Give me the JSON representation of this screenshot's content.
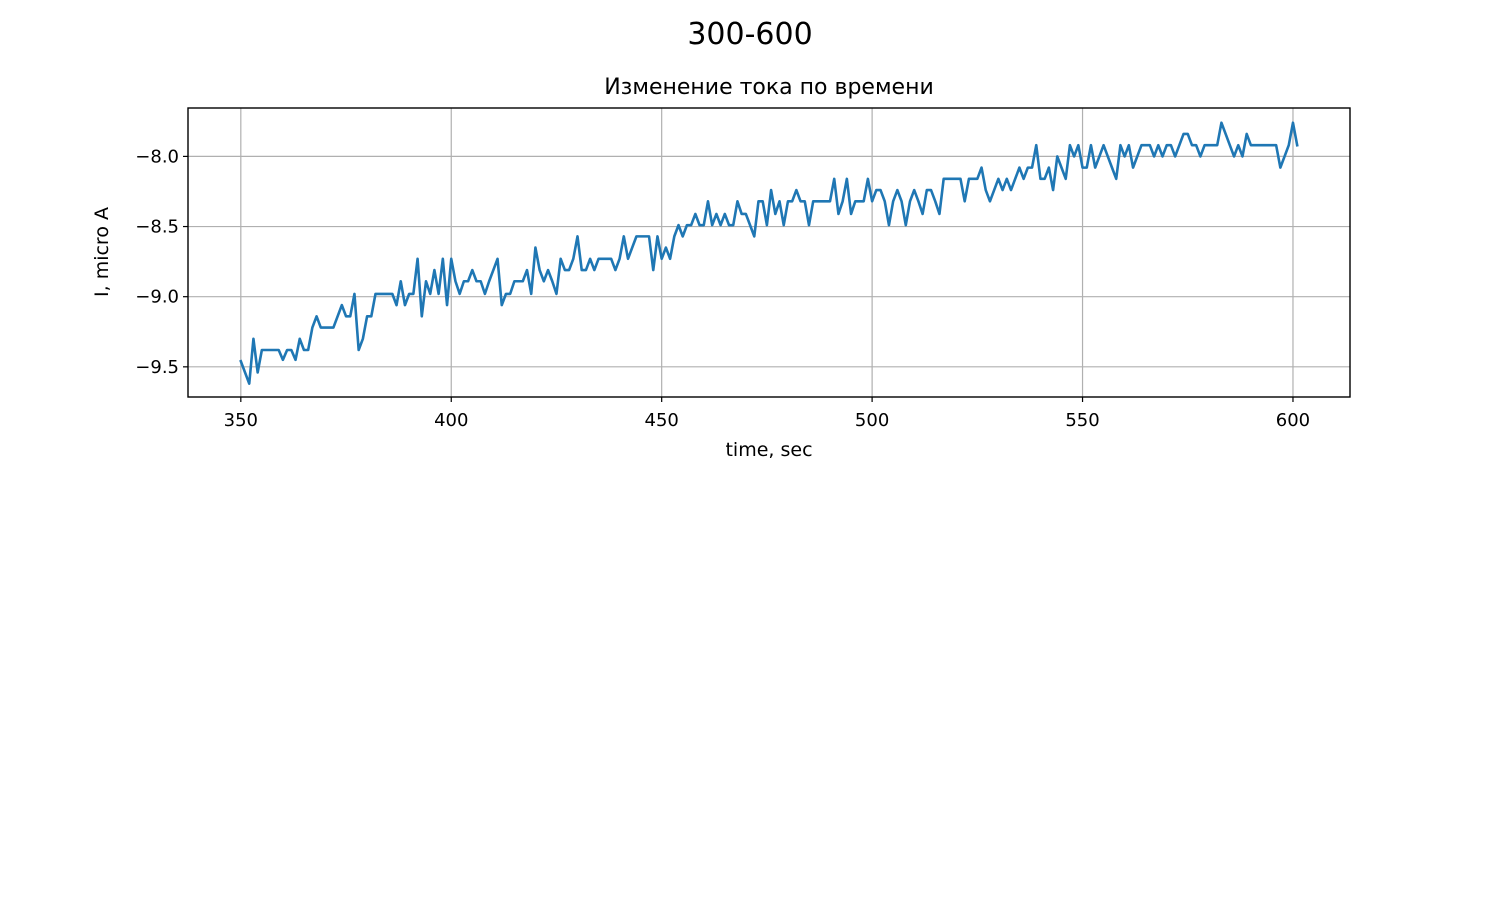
{
  "chart_data": {
    "type": "line",
    "title": "300-600",
    "subtitle": "Изменение тока по времени",
    "x_label": "time, sec",
    "y_label": "I, micro A",
    "color": "#1f77b4",
    "grid": true,
    "xlim": [
      337.45,
      613.55
    ],
    "ylim": [
      -9.715,
      -7.655
    ],
    "xticks": [
      350,
      400,
      450,
      500,
      550,
      600
    ],
    "yticks": [
      {
        "value": -9.5,
        "label": "−9.5"
      },
      {
        "value": -9.0,
        "label": "−9.0"
      },
      {
        "value": -8.5,
        "label": "−8.5"
      },
      {
        "value": -8.0,
        "label": "−8.0"
      }
    ],
    "x": [
      350,
      351,
      352,
      353,
      354,
      355,
      356,
      357,
      358,
      359,
      360,
      361,
      362,
      363,
      364,
      365,
      366,
      367,
      368,
      369,
      370,
      371,
      372,
      373,
      374,
      375,
      376,
      377,
      378,
      379,
      380,
      381,
      382,
      383,
      384,
      385,
      386,
      387,
      388,
      389,
      390,
      391,
      392,
      393,
      394,
      395,
      396,
      397,
      398,
      399,
      400,
      401,
      402,
      403,
      404,
      405,
      406,
      407,
      408,
      409,
      410,
      411,
      412,
      413,
      414,
      415,
      416,
      417,
      418,
      419,
      420,
      421,
      422,
      423,
      424,
      425,
      426,
      427,
      428,
      429,
      430,
      431,
      432,
      433,
      434,
      435,
      436,
      437,
      438,
      439,
      440,
      441,
      442,
      443,
      444,
      445,
      446,
      447,
      448,
      449,
      450,
      451,
      452,
      453,
      454,
      455,
      456,
      457,
      458,
      459,
      460,
      461,
      462,
      463,
      464,
      465,
      466,
      467,
      468,
      469,
      470,
      471,
      472,
      473,
      474,
      475,
      476,
      477,
      478,
      479,
      480,
      481,
      482,
      483,
      484,
      485,
      486,
      487,
      488,
      489,
      490,
      491,
      492,
      493,
      494,
      495,
      496,
      497,
      498,
      499,
      500,
      501,
      502,
      503,
      504,
      505,
      506,
      507,
      508,
      509,
      510,
      511,
      512,
      513,
      514,
      515,
      516,
      517,
      518,
      519,
      520,
      521,
      522,
      523,
      524,
      525,
      526,
      527,
      528,
      529,
      530,
      531,
      532,
      533,
      534,
      535,
      536,
      537,
      538,
      539,
      540,
      541,
      542,
      543,
      544,
      545,
      546,
      547,
      548,
      549,
      550,
      551,
      552,
      553,
      554,
      555,
      556,
      557,
      558,
      559,
      560,
      561,
      562,
      563,
      564,
      565,
      566,
      567,
      568,
      569,
      570,
      571,
      572,
      573,
      574,
      575,
      576,
      577,
      578,
      579,
      580,
      581,
      582,
      583,
      584,
      585,
      586,
      587,
      588,
      589,
      590,
      591,
      592,
      593,
      594,
      595,
      596,
      597,
      598,
      599,
      600,
      601
    ],
    "values": [
      -9.46,
      -9.54,
      -9.62,
      -9.3,
      -9.54,
      -9.38,
      -9.38,
      -9.38,
      -9.38,
      -9.38,
      -9.45,
      -9.38,
      -9.38,
      -9.45,
      -9.3,
      -9.38,
      -9.38,
      -9.22,
      -9.14,
      -9.22,
      -9.22,
      -9.22,
      -9.22,
      -9.14,
      -9.06,
      -9.14,
      -9.14,
      -8.98,
      -9.38,
      -9.3,
      -9.14,
      -9.14,
      -8.98,
      -8.98,
      -8.98,
      -8.98,
      -8.98,
      -9.06,
      -8.89,
      -9.06,
      -8.98,
      -8.98,
      -8.73,
      -9.14,
      -8.89,
      -8.98,
      -8.81,
      -8.98,
      -8.73,
      -9.06,
      -8.73,
      -8.89,
      -8.98,
      -8.89,
      -8.89,
      -8.81,
      -8.89,
      -8.89,
      -8.98,
      -8.89,
      -8.81,
      -8.73,
      -9.06,
      -8.98,
      -8.98,
      -8.89,
      -8.89,
      -8.89,
      -8.81,
      -8.98,
      -8.65,
      -8.81,
      -8.89,
      -8.81,
      -8.89,
      -8.98,
      -8.73,
      -8.81,
      -8.81,
      -8.73,
      -8.57,
      -8.81,
      -8.81,
      -8.73,
      -8.81,
      -8.73,
      -8.73,
      -8.73,
      -8.73,
      -8.81,
      -8.73,
      -8.57,
      -8.73,
      -8.65,
      -8.57,
      -8.57,
      -8.57,
      -8.57,
      -8.81,
      -8.57,
      -8.73,
      -8.65,
      -8.73,
      -8.57,
      -8.49,
      -8.57,
      -8.49,
      -8.49,
      -8.41,
      -8.49,
      -8.49,
      -8.32,
      -8.49,
      -8.41,
      -8.49,
      -8.41,
      -8.49,
      -8.49,
      -8.32,
      -8.41,
      -8.41,
      -8.49,
      -8.57,
      -8.32,
      -8.32,
      -8.49,
      -8.24,
      -8.41,
      -8.32,
      -8.49,
      -8.32,
      -8.32,
      -8.24,
      -8.32,
      -8.32,
      -8.49,
      -8.32,
      -8.32,
      -8.32,
      -8.32,
      -8.32,
      -8.16,
      -8.41,
      -8.32,
      -8.16,
      -8.41,
      -8.32,
      -8.32,
      -8.32,
      -8.16,
      -8.32,
      -8.24,
      -8.24,
      -8.32,
      -8.49,
      -8.32,
      -8.24,
      -8.32,
      -8.49,
      -8.32,
      -8.24,
      -8.32,
      -8.41,
      -8.24,
      -8.24,
      -8.32,
      -8.41,
      -8.16,
      -8.16,
      -8.16,
      -8.16,
      -8.16,
      -8.32,
      -8.16,
      -8.16,
      -8.16,
      -8.08,
      -8.24,
      -8.32,
      -8.24,
      -8.16,
      -8.24,
      -8.16,
      -8.24,
      -8.16,
      -8.08,
      -8.16,
      -8.08,
      -8.08,
      -7.92,
      -8.16,
      -8.16,
      -8.08,
      -8.24,
      -8.0,
      -8.08,
      -8.16,
      -7.92,
      -8.0,
      -7.92,
      -8.08,
      -8.08,
      -7.92,
      -8.08,
      -8.0,
      -7.92,
      -8.0,
      -8.08,
      -8.16,
      -7.92,
      -8.0,
      -7.92,
      -8.08,
      -8.0,
      -7.92,
      -7.92,
      -7.92,
      -8.0,
      -7.92,
      -8.0,
      -7.92,
      -7.92,
      -8.0,
      -7.92,
      -7.84,
      -7.84,
      -7.92,
      -7.92,
      -8.0,
      -7.92,
      -7.92,
      -7.92,
      -7.92,
      -7.76,
      -7.84,
      -7.92,
      -8.0,
      -7.92,
      -8.0,
      -7.84,
      -7.92,
      -7.92,
      -7.92,
      -7.92,
      -7.92,
      -7.92,
      -7.92,
      -8.08,
      -8.0,
      -7.92,
      -7.76,
      -7.92
    ]
  }
}
